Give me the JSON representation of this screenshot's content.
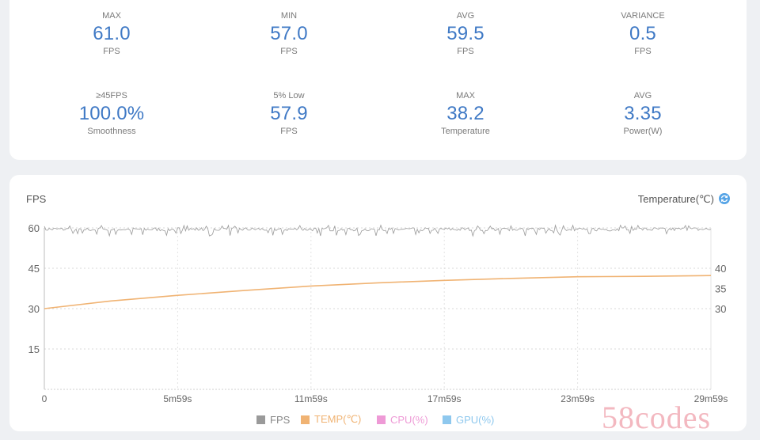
{
  "stats": [
    {
      "label": "MAX",
      "value": "61.0",
      "unit": "FPS"
    },
    {
      "label": "MIN",
      "value": "57.0",
      "unit": "FPS"
    },
    {
      "label": "AVG",
      "value": "59.5",
      "unit": "FPS"
    },
    {
      "label": "VARIANCE",
      "value": "0.5",
      "unit": "FPS"
    },
    {
      "label": "≥45FPS",
      "value": "100.0%",
      "unit": "Smoothness"
    },
    {
      "label": "5% Low",
      "value": "57.9",
      "unit": "FPS"
    },
    {
      "label": "MAX",
      "value": "38.2",
      "unit": "Temperature"
    },
    {
      "label": "AVG",
      "value": "3.35",
      "unit": "Power(W)"
    }
  ],
  "chart": {
    "left_axis_title": "FPS",
    "right_axis_title": "Temperature(℃)",
    "toggle_icon": "refresh-icon",
    "legend": [
      {
        "label": "FPS",
        "color": "#9a9a9a"
      },
      {
        "label": "TEMP(℃)",
        "color": "#f0b373"
      },
      {
        "label": "CPU(%)",
        "color": "#ee9ad6"
      },
      {
        "label": "GPU(%)",
        "color": "#8ec8ee"
      }
    ]
  },
  "chart_data": {
    "type": "line",
    "xlabel": "",
    "ylabel": "FPS",
    "y2label": "Temperature(℃)",
    "x_ticks": [
      "0",
      "5m59s",
      "11m59s",
      "17m59s",
      "23m59s",
      "29m59s"
    ],
    "x_range_s": [
      0,
      1799
    ],
    "ylim": [
      0,
      60
    ],
    "y_ticks": [
      15,
      30,
      45,
      60
    ],
    "y2_ticks": [
      30,
      35,
      40
    ],
    "grid": true,
    "series": [
      {
        "name": "FPS",
        "color": "#9a9a9a",
        "axis": "left",
        "t_s": [
          0,
          360,
          720,
          1080,
          1440,
          1799
        ],
        "values": [
          59.5,
          59.5,
          59.5,
          59.5,
          59.5,
          59.5
        ],
        "min": 57.0,
        "max": 61.0
      },
      {
        "name": "TEMP(℃)",
        "color": "#f0b373",
        "axis": "right",
        "t_s": [
          0,
          180,
          360,
          540,
          720,
          900,
          1080,
          1260,
          1440,
          1620,
          1799
        ],
        "values": [
          30.0,
          31.9,
          33.3,
          34.5,
          35.6,
          36.4,
          37.0,
          37.5,
          37.9,
          38.0,
          38.2
        ]
      }
    ],
    "legend_placement": "bottom"
  }
}
